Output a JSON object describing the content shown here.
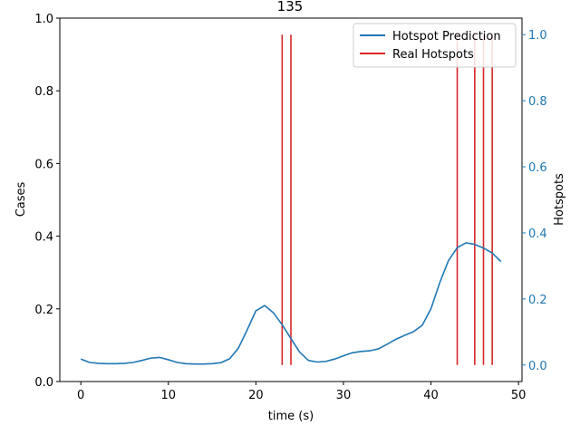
{
  "chart_data": {
    "type": "line",
    "title": "135",
    "xlabel": "time (s)",
    "ylabel": "Cases",
    "y2label": "Hotspots",
    "xlim": [
      -2.4,
      50.4
    ],
    "ylim": [
      0,
      1.0
    ],
    "y2lim": [
      -0.05,
      1.05
    ],
    "xticks": [
      0,
      10,
      20,
      30,
      40,
      50
    ],
    "yticks": [
      0.0,
      0.2,
      0.4,
      0.6,
      0.8,
      1.0
    ],
    "y2ticks": [
      0.0,
      0.2,
      0.4,
      0.6,
      0.8,
      1.0
    ],
    "grid": false,
    "legend_position": "top-right",
    "colors": {
      "prediction": "#1f77b4",
      "hotspots": "#d62728",
      "right_axis": "#1f77b4"
    },
    "series": [
      {
        "name": "Hotspot Prediction",
        "kind": "line",
        "axis": "right",
        "x": [
          0,
          1,
          2,
          3,
          4,
          5,
          6,
          7,
          8,
          9,
          10,
          11,
          12,
          13,
          14,
          15,
          16,
          17,
          18,
          19,
          20,
          21,
          22,
          23,
          24,
          25,
          26,
          27,
          28,
          29,
          30,
          31,
          32,
          33,
          34,
          35,
          36,
          37,
          38,
          39,
          40,
          41,
          42,
          43,
          44,
          45,
          46,
          47,
          48
        ],
        "values": [
          0.018,
          0.008,
          0.005,
          0.004,
          0.004,
          0.005,
          0.008,
          0.014,
          0.021,
          0.023,
          0.016,
          0.008,
          0.004,
          0.003,
          0.003,
          0.004,
          0.007,
          0.019,
          0.051,
          0.106,
          0.164,
          0.18,
          0.158,
          0.122,
          0.08,
          0.039,
          0.014,
          0.009,
          0.011,
          0.018,
          0.028,
          0.037,
          0.041,
          0.043,
          0.049,
          0.063,
          0.078,
          0.09,
          0.101,
          0.12,
          0.17,
          0.249,
          0.316,
          0.355,
          0.37,
          0.365,
          0.354,
          0.339,
          0.313
        ]
      },
      {
        "name": "Real Hotspots",
        "kind": "vlines",
        "axis": "right",
        "x": [
          23,
          24,
          43,
          45,
          46,
          47
        ],
        "from": 0.0,
        "to": 1.0
      }
    ]
  }
}
